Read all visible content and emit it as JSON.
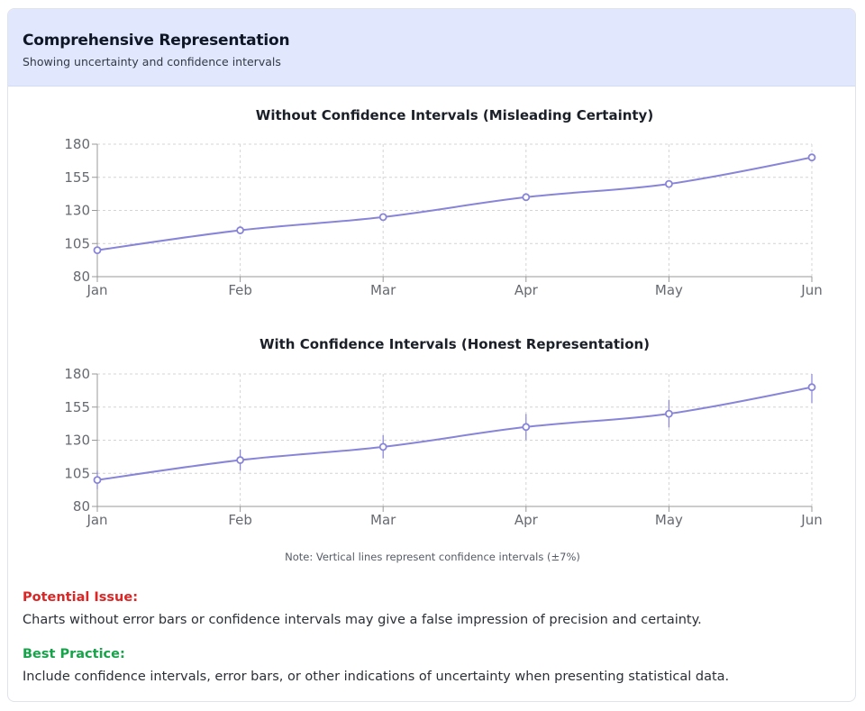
{
  "card": {
    "title": "Comprehensive Representation",
    "subtitle": "Showing uncertainty and confidence intervals"
  },
  "note": "Note: Vertical lines represent confidence intervals (±7%)",
  "issue": {
    "title": "Potential Issue:",
    "text": "Charts without error bars or confidence intervals may give a false impression of precision and certainty."
  },
  "best_practice": {
    "title": "Best Practice:",
    "text": "Include confidence intervals, error bars, or other indications of uncertainty when presenting statistical data."
  },
  "colors": {
    "line": "#8884d8",
    "grid": "#d4d4d4",
    "axis": "#999999",
    "issue": "#dc2626",
    "best_practice": "#16a34a",
    "header_bg": "#e1e7fd"
  },
  "chart_data": [
    {
      "type": "line",
      "title": "Without Confidence Intervals (Misleading Certainty)",
      "categories": [
        "Jan",
        "Feb",
        "Mar",
        "Apr",
        "May",
        "Jun"
      ],
      "values": [
        100,
        115,
        125,
        140,
        150,
        170
      ],
      "ylim": [
        80,
        180
      ],
      "yticks": [
        80,
        105,
        130,
        155,
        180
      ],
      "grid": true,
      "error_bars": false
    },
    {
      "type": "line",
      "title": "With Confidence Intervals (Honest Representation)",
      "categories": [
        "Jan",
        "Feb",
        "Mar",
        "Apr",
        "May",
        "Jun"
      ],
      "values": [
        100,
        115,
        125,
        140,
        150,
        170
      ],
      "ylim": [
        80,
        180
      ],
      "yticks": [
        80,
        105,
        130,
        155,
        180
      ],
      "grid": true,
      "error_bars": true,
      "error_pct": 7
    }
  ]
}
